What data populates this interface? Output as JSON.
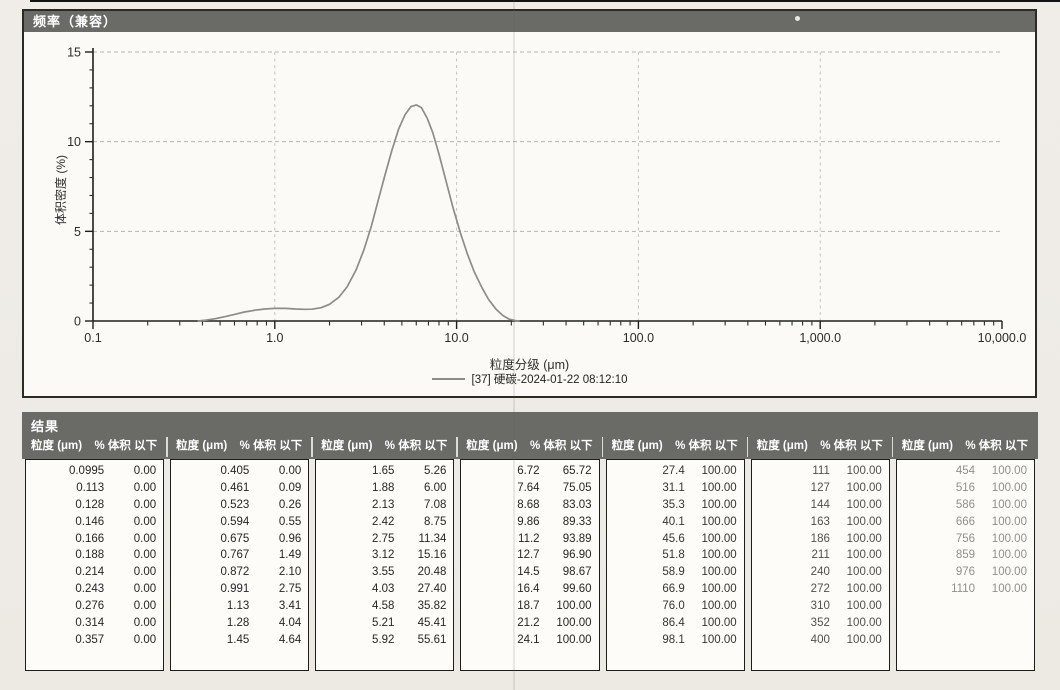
{
  "chart_panel": {
    "title": "频率（兼容）"
  },
  "chart_data": {
    "type": "line",
    "title": "频率（兼容）",
    "xlabel": "粒度分级 (μm)",
    "ylabel": "体积密度 (%)",
    "x_scale": "log",
    "xlim": [
      0.1,
      10000
    ],
    "ylim": [
      0,
      15
    ],
    "x_tick_labels": [
      "0.1",
      "1.0",
      "10.0",
      "100.0",
      "1,000.0",
      "10,000.0"
    ],
    "y_tick_labels": [
      "0",
      "5",
      "10",
      "15"
    ],
    "grid": true,
    "legend_position": "bottom",
    "series": [
      {
        "name": "[37] 硬碳-2024-01-22 08:12:10",
        "color": "#8c8c8a",
        "points": [
          [
            0.38,
            0
          ],
          [
            0.42,
            0.05
          ],
          [
            0.47,
            0.13
          ],
          [
            0.53,
            0.24
          ],
          [
            0.6,
            0.37
          ],
          [
            0.68,
            0.5
          ],
          [
            0.78,
            0.6
          ],
          [
            0.88,
            0.67
          ],
          [
            1.0,
            0.7
          ],
          [
            1.15,
            0.7
          ],
          [
            1.3,
            0.67
          ],
          [
            1.45,
            0.65
          ],
          [
            1.6,
            0.66
          ],
          [
            1.8,
            0.74
          ],
          [
            2.0,
            0.93
          ],
          [
            2.25,
            1.32
          ],
          [
            2.5,
            1.9
          ],
          [
            2.8,
            2.85
          ],
          [
            3.1,
            4.0
          ],
          [
            3.4,
            5.3
          ],
          [
            3.7,
            6.7
          ],
          [
            4.0,
            8.0
          ],
          [
            4.4,
            9.5
          ],
          [
            4.8,
            10.7
          ],
          [
            5.2,
            11.5
          ],
          [
            5.6,
            11.95
          ],
          [
            6.0,
            12.05
          ],
          [
            6.4,
            11.9
          ],
          [
            6.9,
            11.3
          ],
          [
            7.4,
            10.5
          ],
          [
            8.0,
            9.3
          ],
          [
            8.7,
            7.9
          ],
          [
            9.5,
            6.4
          ],
          [
            10.5,
            4.9
          ],
          [
            11.5,
            3.7
          ],
          [
            12.5,
            2.75
          ],
          [
            13.8,
            1.85
          ],
          [
            15.0,
            1.2
          ],
          [
            16.5,
            0.65
          ],
          [
            18.0,
            0.3
          ],
          [
            19.5,
            0.1
          ],
          [
            21.0,
            0.02
          ],
          [
            22.0,
            0
          ]
        ]
      }
    ]
  },
  "results_panel": {
    "title": "结果",
    "col_headers": {
      "size": "粒度 (μm)",
      "pct": "% 体积 以下"
    },
    "groups": [
      {
        "rows": [
          [
            "0.0995",
            "0.00"
          ],
          [
            "0.113",
            "0.00"
          ],
          [
            "0.128",
            "0.00"
          ],
          [
            "0.146",
            "0.00"
          ],
          [
            "0.166",
            "0.00"
          ],
          [
            "0.188",
            "0.00"
          ],
          [
            "0.214",
            "0.00"
          ],
          [
            "0.243",
            "0.00"
          ],
          [
            "0.276",
            "0.00"
          ],
          [
            "0.314",
            "0.00"
          ],
          [
            "0.357",
            "0.00"
          ]
        ]
      },
      {
        "rows": [
          [
            "0.405",
            "0.00"
          ],
          [
            "0.461",
            "0.09"
          ],
          [
            "0.523",
            "0.26"
          ],
          [
            "0.594",
            "0.55"
          ],
          [
            "0.675",
            "0.96"
          ],
          [
            "0.767",
            "1.49"
          ],
          [
            "0.872",
            "2.10"
          ],
          [
            "0.991",
            "2.75"
          ],
          [
            "1.13",
            "3.41"
          ],
          [
            "1.28",
            "4.04"
          ],
          [
            "1.45",
            "4.64"
          ]
        ]
      },
      {
        "rows": [
          [
            "1.65",
            "5.26"
          ],
          [
            "1.88",
            "6.00"
          ],
          [
            "2.13",
            "7.08"
          ],
          [
            "2.42",
            "8.75"
          ],
          [
            "2.75",
            "11.34"
          ],
          [
            "3.12",
            "15.16"
          ],
          [
            "3.55",
            "20.48"
          ],
          [
            "4.03",
            "27.40"
          ],
          [
            "4.58",
            "35.82"
          ],
          [
            "5.21",
            "45.41"
          ],
          [
            "5.92",
            "55.61"
          ]
        ]
      },
      {
        "rows": [
          [
            "6.72",
            "65.72"
          ],
          [
            "7.64",
            "75.05"
          ],
          [
            "8.68",
            "83.03"
          ],
          [
            "9.86",
            "89.33"
          ],
          [
            "11.2",
            "93.89"
          ],
          [
            "12.7",
            "96.90"
          ],
          [
            "14.5",
            "98.67"
          ],
          [
            "16.4",
            "99.60"
          ],
          [
            "18.7",
            "100.00"
          ],
          [
            "21.2",
            "100.00"
          ],
          [
            "24.1",
            "100.00"
          ]
        ]
      },
      {
        "rows": [
          [
            "27.4",
            "100.00"
          ],
          [
            "31.1",
            "100.00"
          ],
          [
            "35.3",
            "100.00"
          ],
          [
            "40.1",
            "100.00"
          ],
          [
            "45.6",
            "100.00"
          ],
          [
            "51.8",
            "100.00"
          ],
          [
            "58.9",
            "100.00"
          ],
          [
            "66.9",
            "100.00"
          ],
          [
            "76.0",
            "100.00"
          ],
          [
            "86.4",
            "100.00"
          ],
          [
            "98.1",
            "100.00"
          ]
        ]
      },
      {
        "rows": [
          [
            "111",
            "100.00"
          ],
          [
            "127",
            "100.00"
          ],
          [
            "144",
            "100.00"
          ],
          [
            "163",
            "100.00"
          ],
          [
            "186",
            "100.00"
          ],
          [
            "211",
            "100.00"
          ],
          [
            "240",
            "100.00"
          ],
          [
            "272",
            "100.00"
          ],
          [
            "310",
            "100.00"
          ],
          [
            "352",
            "100.00"
          ],
          [
            "400",
            "100.00"
          ]
        ]
      },
      {
        "rows": [
          [
            "454",
            "100.00"
          ],
          [
            "516",
            "100.00"
          ],
          [
            "586",
            "100.00"
          ],
          [
            "666",
            "100.00"
          ],
          [
            "756",
            "100.00"
          ],
          [
            "859",
            "100.00"
          ],
          [
            "976",
            "100.00"
          ],
          [
            "1110",
            "100.00"
          ]
        ]
      }
    ]
  }
}
